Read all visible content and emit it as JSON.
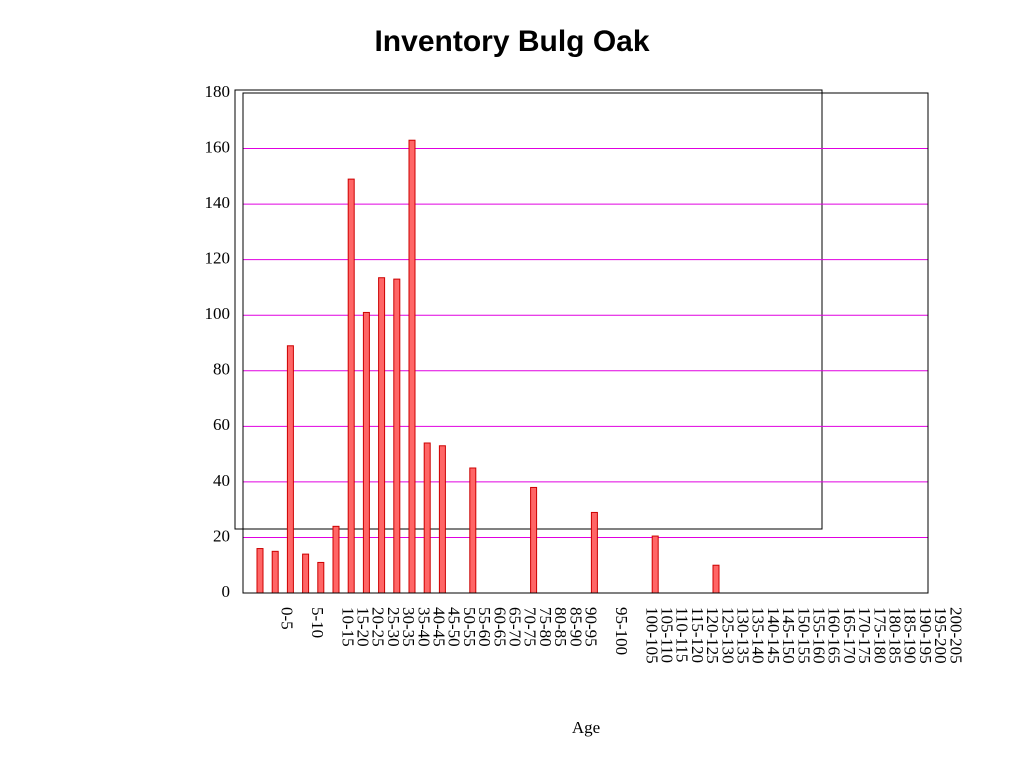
{
  "chart_data": {
    "type": "bar",
    "title": "Inventory Bulg Oak",
    "x_label": "Age",
    "categories": [
      null,
      null,
      "0-5",
      null,
      "5-10",
      null,
      "10-15",
      "15-20",
      "20-25",
      "25-30",
      "30-35",
      "35-40",
      "40-45",
      "45-50",
      "50-55",
      "55-60",
      "60-65",
      "65-70",
      "70-75",
      "75-80",
      "80-85",
      "85-90",
      "90-95",
      null,
      "95-100",
      null,
      "100-105",
      "105-110",
      "110-115",
      "115-120",
      "120-125",
      "125-130",
      "130-135",
      "135-140",
      "140-145",
      "145-150",
      "150-155",
      "155-160",
      "160-165",
      "165-170",
      "170-175",
      "175-180",
      "180-185",
      "185-190",
      "190-195",
      "195-200",
      "200-205"
    ],
    "values": [
      16,
      15,
      89,
      14,
      11,
      24,
      149,
      101,
      113.5,
      113,
      163,
      54,
      53,
      0,
      45,
      0,
      0,
      0,
      38,
      0,
      0,
      0,
      29,
      0,
      0,
      0,
      20.5,
      0,
      0,
      0,
      10,
      0,
      0,
      0,
      0,
      0,
      0,
      0,
      0,
      0,
      0,
      0,
      0,
      0,
      0,
      0,
      0
    ],
    "color": "#ff6666",
    "ylim": [
      0,
      180
    ],
    "yticks": [
      0,
      20,
      40,
      60,
      80,
      100,
      120,
      140,
      160,
      180
    ],
    "grid": true,
    "grid_color": "#e000e0"
  }
}
